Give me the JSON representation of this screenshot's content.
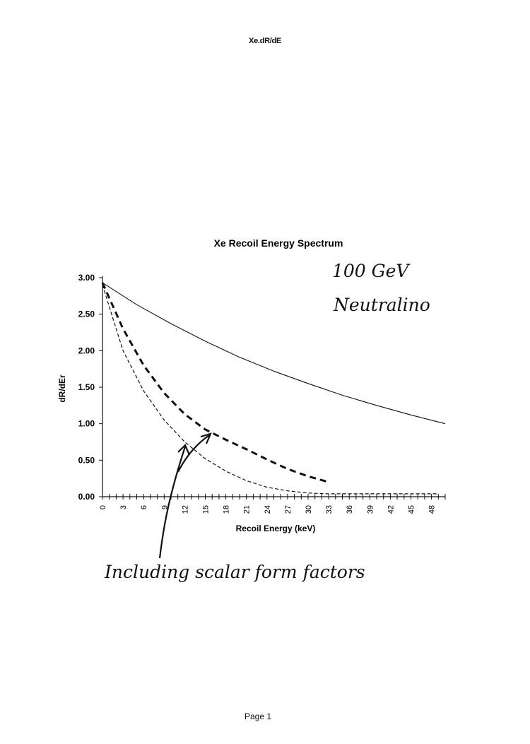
{
  "page": {
    "header": "Xe.dR/dE",
    "footer": "Page 1"
  },
  "chart_data": {
    "type": "line",
    "title": "Xe Recoil Energy Spectrum",
    "xlabel": "Recoil Energy (keV)",
    "ylabel": "dR/dEr",
    "xlim": [
      0,
      50
    ],
    "ylim": [
      0,
      3
    ],
    "x_tick_labels": [
      0,
      3,
      6,
      9,
      12,
      15,
      18,
      21,
      24,
      27,
      30,
      33,
      36,
      39,
      42,
      45,
      48
    ],
    "y_tick_labels": [
      "0.00",
      "0.50",
      "1.00",
      "1.50",
      "2.00",
      "2.50",
      "3.00"
    ],
    "grid": false,
    "legend": "none",
    "series": [
      {
        "style": "solid",
        "x": [
          0,
          5,
          10,
          15,
          20,
          25,
          30,
          35,
          40,
          45,
          50
        ],
        "y": [
          2.93,
          2.63,
          2.37,
          2.13,
          1.91,
          1.72,
          1.55,
          1.39,
          1.25,
          1.12,
          1.0
        ]
      },
      {
        "style": "dashed-heavy",
        "x": [
          0,
          3,
          6,
          9,
          12,
          15,
          18,
          21,
          24,
          27,
          30,
          33
        ],
        "y": [
          2.93,
          2.3,
          1.8,
          1.42,
          1.13,
          0.92,
          0.78,
          0.65,
          0.51,
          0.38,
          0.28,
          0.2
        ]
      },
      {
        "style": "dashed-light",
        "x": [
          0,
          3,
          6,
          9,
          12,
          15,
          18,
          21,
          24,
          27,
          30,
          33,
          36,
          39,
          42,
          45,
          49
        ],
        "y": [
          2.9,
          2.0,
          1.45,
          1.05,
          0.75,
          0.52,
          0.35,
          0.22,
          0.13,
          0.08,
          0.05,
          0.04,
          0.04,
          0.04,
          0.04,
          0.04,
          0.04
        ]
      }
    ],
    "annotations": [
      {
        "text": "100 GeV"
      },
      {
        "text": "Neutralino"
      },
      {
        "text": "Including scalar form factors"
      }
    ]
  }
}
